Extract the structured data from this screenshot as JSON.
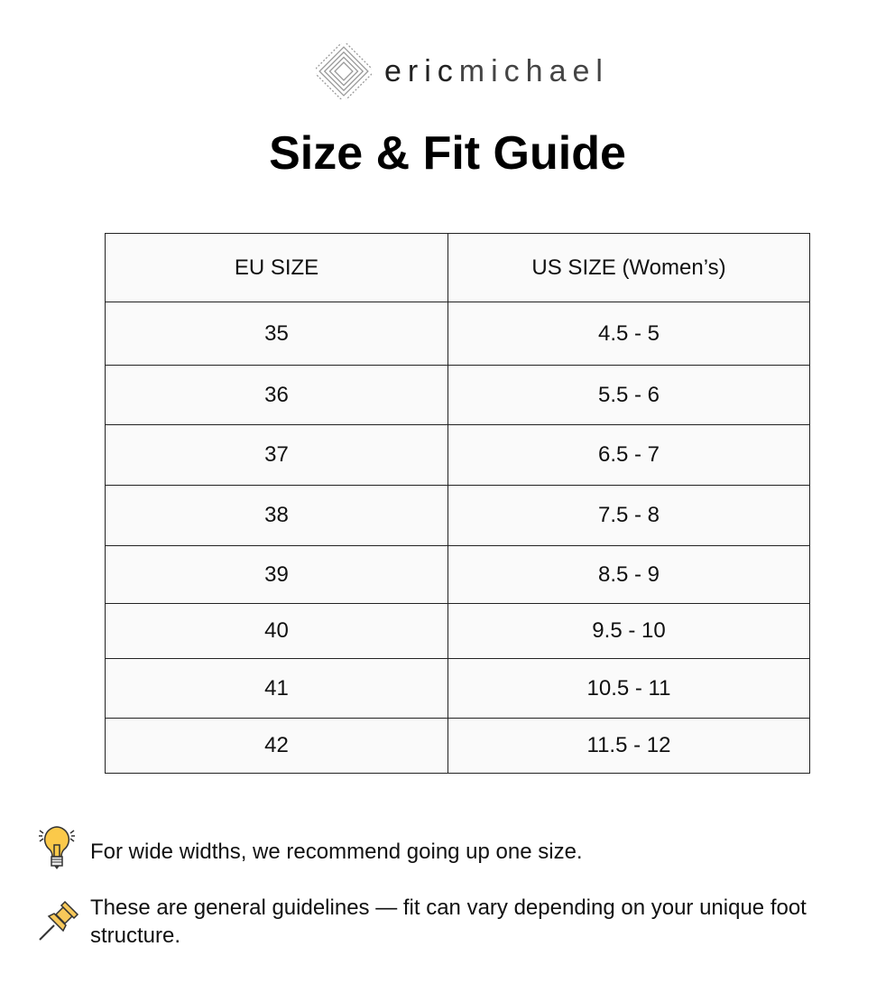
{
  "brand": {
    "name_bold": "eric",
    "name_light": "michael"
  },
  "title": "Size & Fit Guide",
  "table": {
    "headers": [
      "EU SIZE",
      "US SIZE (Women’s)"
    ],
    "rows": [
      [
        "35",
        "4.5 - 5"
      ],
      [
        "36",
        "5.5 - 6"
      ],
      [
        "37",
        "6.5 - 7"
      ],
      [
        "38",
        "7.5 - 8"
      ],
      [
        "39",
        "8.5 - 9"
      ],
      [
        "40",
        "9.5 - 10"
      ],
      [
        "41",
        "10.5 - 11"
      ],
      [
        "42",
        "11.5 - 12"
      ]
    ]
  },
  "notes": [
    {
      "icon": "lightbulb-icon",
      "text": "For wide widths, we recommend going up one size."
    },
    {
      "icon": "pushpin-icon",
      "text": "These are general guidelines — fit can vary depending on your unique foot structure."
    }
  ]
}
